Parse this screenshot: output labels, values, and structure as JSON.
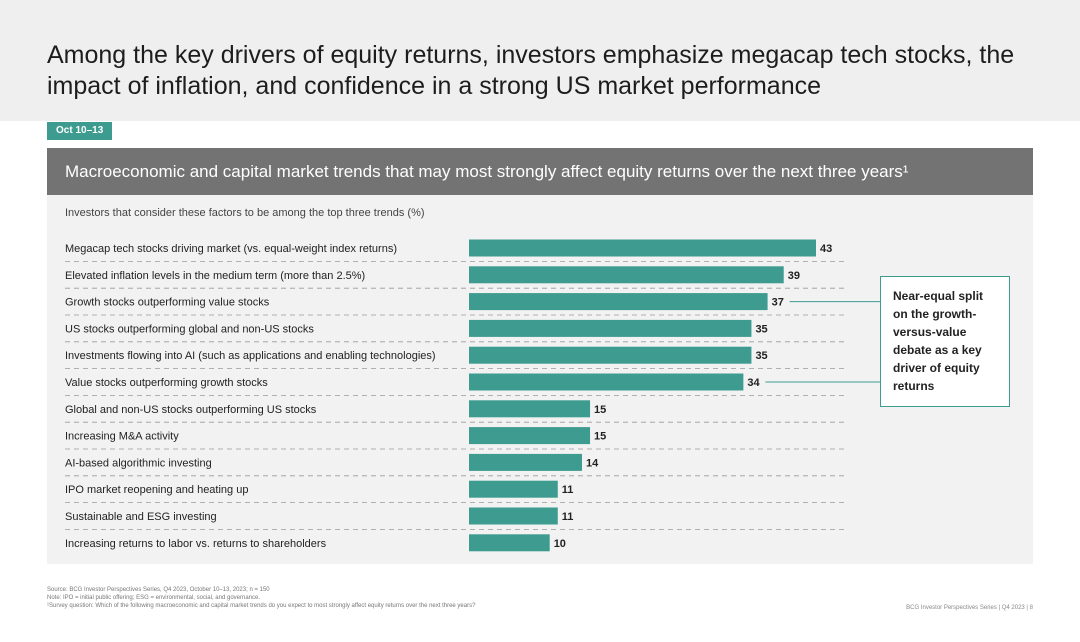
{
  "title": "Among the key drivers of equity returns, investors emphasize megacap tech stocks, the impact of inflation, and confidence in a strong US market performance",
  "date_tag": "Oct 10–13",
  "panel_title": "Macroeconomic and capital market trends that may most strongly affect equity returns over the next three years¹",
  "colors": {
    "bar": "#3d9b8f",
    "panel_header": "#737373",
    "panel_bg": "#f2f2f2"
  },
  "chart_data": {
    "type": "bar",
    "orientation": "horizontal",
    "subtitle": "Investors that consider these factors to be among the top three trends (%)",
    "categories": [
      "Megacap tech stocks driving market (vs. equal-weight index returns)",
      "Elevated inflation levels in the medium term (more than 2.5%)",
      "Growth stocks outperforming value stocks",
      "US stocks outperforming global and non-US stocks",
      "Investments flowing into AI (such as applications and enabling technologies)",
      "Value stocks outperforming growth stocks",
      "Global and non-US stocks outperforming US stocks",
      "Increasing M&A activity",
      "AI-based algorithmic investing",
      "IPO market reopening and heating up",
      "Sustainable and ESG investing",
      "Increasing returns to labor vs. returns to shareholders"
    ],
    "values": [
      43,
      39,
      37,
      35,
      35,
      34,
      15,
      15,
      14,
      11,
      11,
      10
    ],
    "xlim": [
      0,
      43
    ],
    "grid": false,
    "annotation": {
      "text": "Near-equal split on the growth-versus-value debate as a key driver of equity returns",
      "points_to": [
        "Growth stocks outperforming value stocks",
        "Value stocks outperforming growth stocks"
      ]
    }
  },
  "footnotes": {
    "source": "Source: BCG Investor Perspectives Series, Q4 2023, October 10–13, 2023; n = 150",
    "note": "Note: IPO = initial public offering; ESG = environmental, social, and governance.",
    "survey": "¹Survey question: Which of the following macroeconomic and capital market trends do you expect to most strongly affect equity returns over the next three years?"
  },
  "page_footer": "BCG Investor Perspectives Series | Q4 2023 | 8"
}
